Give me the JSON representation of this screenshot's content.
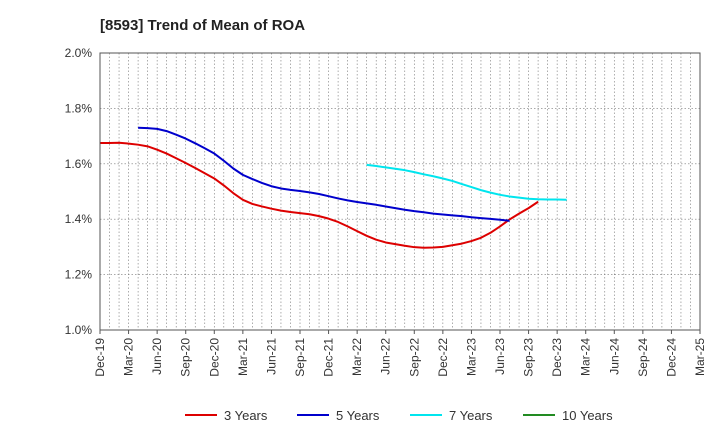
{
  "chart_data": {
    "type": "line",
    "title": "[8593]  Trend of Mean of ROA",
    "xlabel": "",
    "ylabel": "",
    "ylim": [
      1.0,
      2.0
    ],
    "yticks": [
      "1.0%",
      "1.2%",
      "1.4%",
      "1.6%",
      "1.8%",
      "2.0%"
    ],
    "ytick_values": [
      1.0,
      1.2,
      1.4,
      1.6,
      1.8,
      2.0
    ],
    "x_tick_labels": [
      "Dec-19",
      "Mar-20",
      "Jun-20",
      "Sep-20",
      "Dec-20",
      "Mar-21",
      "Jun-21",
      "Sep-21",
      "Dec-21",
      "Mar-22",
      "Jun-22",
      "Sep-22",
      "Dec-22",
      "Mar-23",
      "Jun-23",
      "Sep-23",
      "Dec-23",
      "Mar-24",
      "Jun-24",
      "Sep-24",
      "Dec-24",
      "Mar-25"
    ],
    "grid": true,
    "legend_position": "bottom",
    "series": [
      {
        "name": "3 Years",
        "color": "#dd0000",
        "start_index": 0,
        "values": [
          1.675,
          1.675,
          1.676,
          1.673,
          1.669,
          1.663,
          1.651,
          1.637,
          1.62,
          1.603,
          1.585,
          1.566,
          1.547,
          1.522,
          1.494,
          1.47,
          1.455,
          1.446,
          1.438,
          1.431,
          1.426,
          1.422,
          1.418,
          1.411,
          1.402,
          1.39,
          1.374,
          1.357,
          1.34,
          1.326,
          1.316,
          1.31,
          1.304,
          1.299,
          1.297,
          1.298,
          1.3,
          1.306,
          1.312,
          1.321,
          1.333,
          1.351,
          1.374,
          1.399,
          1.42,
          1.44,
          1.463
        ]
      },
      {
        "name": "5 Years",
        "color": "#0000cc",
        "start_index": 4,
        "values": [
          1.73,
          1.729,
          1.726,
          1.718,
          1.705,
          1.691,
          1.674,
          1.656,
          1.637,
          1.611,
          1.583,
          1.56,
          1.545,
          1.531,
          1.519,
          1.511,
          1.506,
          1.502,
          1.497,
          1.491,
          1.483,
          1.475,
          1.468,
          1.462,
          1.457,
          1.452,
          1.446,
          1.44,
          1.434,
          1.429,
          1.425,
          1.42,
          1.417,
          1.414,
          1.411,
          1.407,
          1.404,
          1.401,
          1.398,
          1.394
        ]
      },
      {
        "name": "7 Years",
        "color": "#00e5ee",
        "start_index": 28,
        "values": [
          1.596,
          1.592,
          1.587,
          1.582,
          1.577,
          1.57,
          1.562,
          1.555,
          1.547,
          1.538,
          1.527,
          1.516,
          1.505,
          1.496,
          1.488,
          1.482,
          1.478,
          1.474,
          1.472,
          1.471,
          1.471,
          1.47
        ]
      },
      {
        "name": "10 Years",
        "color": "#228b22",
        "start_index": 47,
        "values": []
      }
    ]
  }
}
